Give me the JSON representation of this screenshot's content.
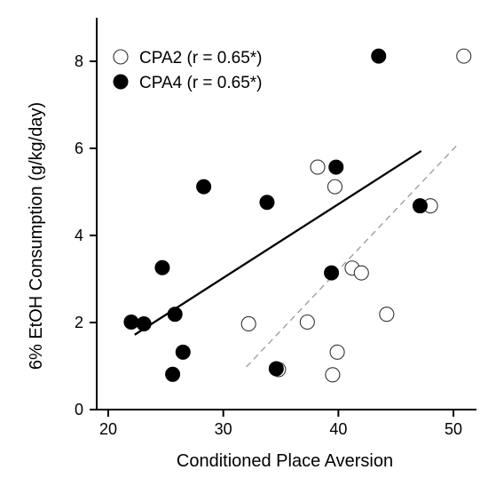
{
  "chart_data": {
    "type": "scatter",
    "xlabel": "Conditioned Place Aversion",
    "ylabel": "6% EtOH Consumption (g/kg/day)",
    "xlim": [
      19,
      52
    ],
    "ylim": [
      0,
      9
    ],
    "xticks": [
      20,
      30,
      40,
      50
    ],
    "yticks": [
      0,
      2,
      4,
      6,
      8
    ],
    "grid": false,
    "legend_position": "top-left",
    "series": [
      {
        "name": "CPA2 (r = 0.65*)",
        "marker": "open-circle",
        "color": "#000000",
        "points": [
          {
            "x": 50.9,
            "y": 8.12
          },
          {
            "x": 38.2,
            "y": 5.57
          },
          {
            "x": 39.7,
            "y": 5.12
          },
          {
            "x": 48.0,
            "y": 4.68
          },
          {
            "x": 41.2,
            "y": 3.25
          },
          {
            "x": 42.0,
            "y": 3.14
          },
          {
            "x": 44.2,
            "y": 2.19
          },
          {
            "x": 32.2,
            "y": 1.97
          },
          {
            "x": 37.3,
            "y": 2.01
          },
          {
            "x": 39.9,
            "y": 1.32
          },
          {
            "x": 34.8,
            "y": 0.92
          },
          {
            "x": 39.5,
            "y": 0.8
          }
        ],
        "fit": {
          "x": [
            32.0,
            50.3
          ],
          "y": [
            0.98,
            6.07
          ],
          "style": "dashed",
          "color": "#999999"
        }
      },
      {
        "name": "CPA4 (r = 0.65*)",
        "marker": "filled-circle",
        "color": "#000000",
        "points": [
          {
            "x": 43.5,
            "y": 8.12
          },
          {
            "x": 39.8,
            "y": 5.57
          },
          {
            "x": 28.3,
            "y": 5.12
          },
          {
            "x": 33.8,
            "y": 4.76
          },
          {
            "x": 47.1,
            "y": 4.68
          },
          {
            "x": 24.7,
            "y": 3.26
          },
          {
            "x": 39.4,
            "y": 3.14
          },
          {
            "x": 25.8,
            "y": 2.19
          },
          {
            "x": 22.0,
            "y": 2.01
          },
          {
            "x": 23.1,
            "y": 1.97
          },
          {
            "x": 26.5,
            "y": 1.32
          },
          {
            "x": 34.6,
            "y": 0.94
          },
          {
            "x": 25.6,
            "y": 0.81
          }
        ],
        "fit": {
          "x": [
            22.3,
            47.2
          ],
          "y": [
            1.72,
            5.94
          ],
          "style": "solid",
          "color": "#000000"
        }
      }
    ]
  }
}
